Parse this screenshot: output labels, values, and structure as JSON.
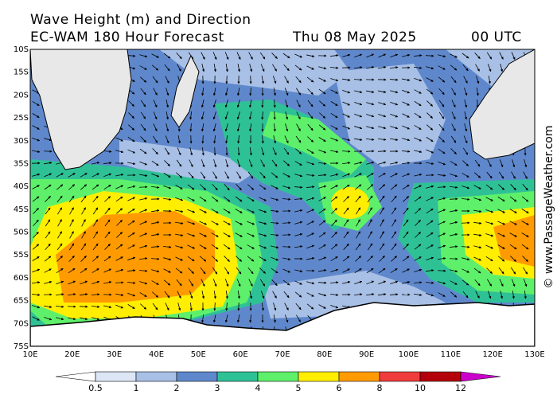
{
  "header": {
    "title": "Wave Height (m) and Direction",
    "model": "EC-WAM 180 Hour Forecast",
    "date": "Thu 08 May 2025",
    "time": "00 UTC"
  },
  "map": {
    "lat_labels": [
      "10S",
      "15S",
      "20S",
      "25S",
      "30S",
      "35S",
      "40S",
      "45S",
      "50S",
      "55S",
      "60S",
      "65S",
      "70S",
      "75S"
    ],
    "lon_labels": [
      "10E",
      "20E",
      "30E",
      "40E",
      "50E",
      "60E",
      "70E",
      "80E",
      "90E",
      "100E",
      "110E",
      "120E",
      "130E"
    ]
  },
  "colorbar": {
    "ticks": [
      0.5,
      1,
      2,
      3,
      4,
      5,
      6,
      8,
      10,
      12
    ],
    "colors": [
      "#dde6f5",
      "#a8c0e6",
      "#5f88cc",
      "#2fc196",
      "#5ef06a",
      "#ffee00",
      "#ff9b00",
      "#f03c3c",
      "#b4000a"
    ],
    "below_color": "#ffffff",
    "above_color": "#cc00cc"
  },
  "watermark": "© www.PassageWeather.com"
}
